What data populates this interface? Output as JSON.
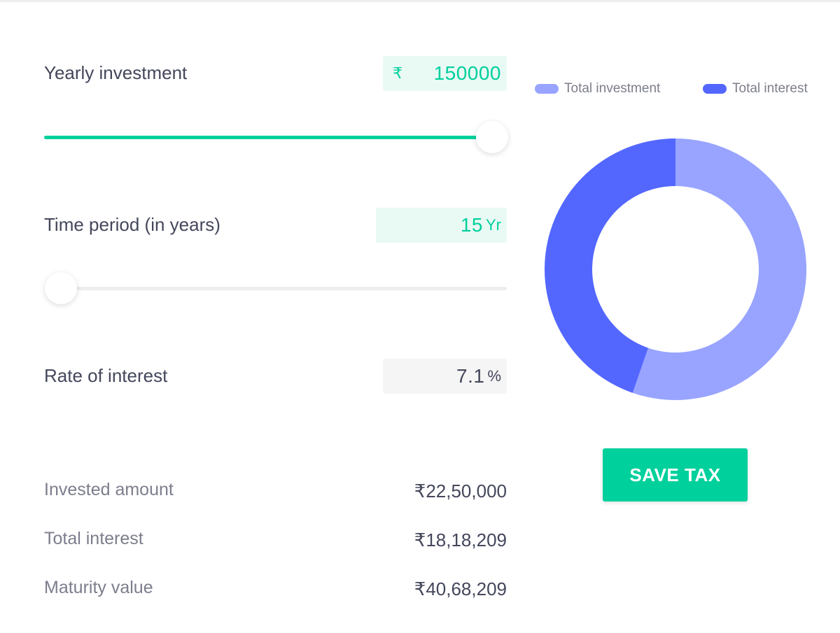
{
  "calculator": {
    "yearly_investment": {
      "label": "Yearly investment",
      "prefix": "₹",
      "value": "150000",
      "slider_fraction": 1.0
    },
    "time_period": {
      "label": "Time period (in years)",
      "value": "15",
      "suffix": "Yr",
      "slider_fraction": 0.0
    },
    "rate_of_interest": {
      "label": "Rate of interest",
      "value": "7.1",
      "suffix": "%"
    }
  },
  "summary": {
    "invested_amount": {
      "label": "Invested amount",
      "value": "₹22,50,000"
    },
    "total_interest": {
      "label": "Total interest",
      "value": "₹18,18,209"
    },
    "maturity_value": {
      "label": "Maturity value",
      "value": "₹40,68,209"
    }
  },
  "legend": {
    "investment_label": "Total investment",
    "interest_label": "Total interest"
  },
  "colors": {
    "accent": "#00d09c",
    "investment": "#98a4ff",
    "interest": "#5367ff"
  },
  "chart_data": {
    "type": "pie",
    "categories": [
      "Total investment",
      "Total interest"
    ],
    "values": [
      2250000,
      1818209
    ]
  },
  "actions": {
    "save_tax_label": "SAVE TAX"
  }
}
